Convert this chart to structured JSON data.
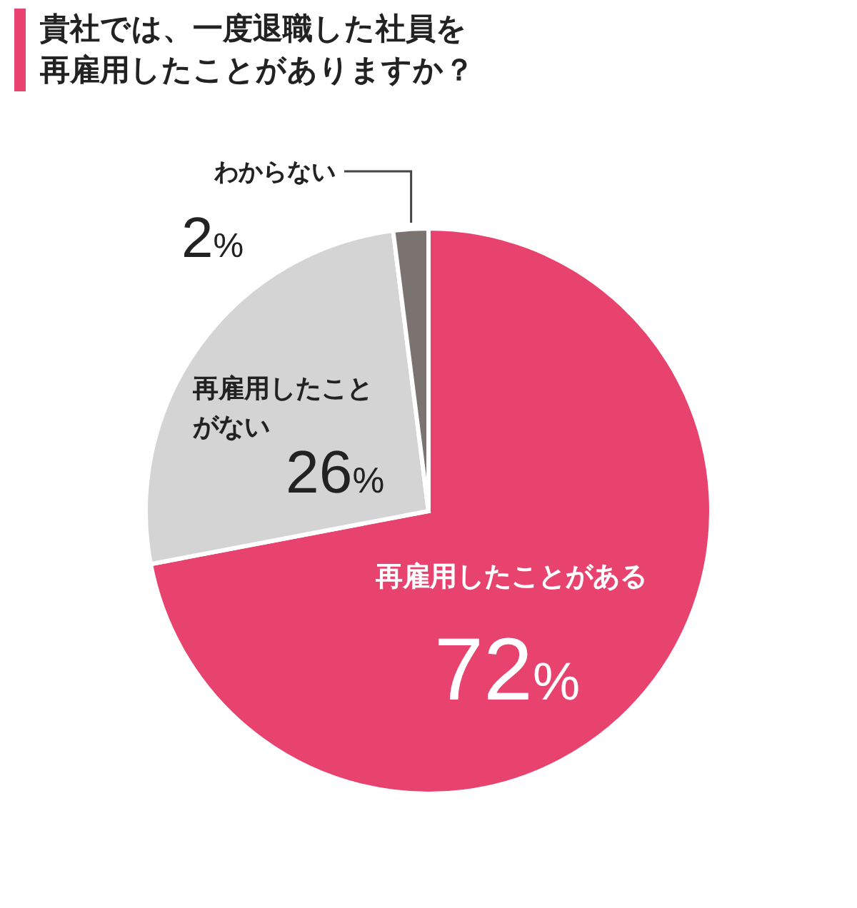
{
  "chart_data": {
    "type": "pie",
    "title": "貴社では、一度退職した社員を再雇用したことがありますか？",
    "categories": [
      "再雇用したことがある",
      "再雇用したことがない",
      "わからない"
    ],
    "values": [
      72,
      26,
      2
    ],
    "colors": [
      "#e8436e",
      "#d4d4d4",
      "#7b7370"
    ],
    "value_labels": [
      "72%",
      "26%",
      "2%"
    ]
  }
}
